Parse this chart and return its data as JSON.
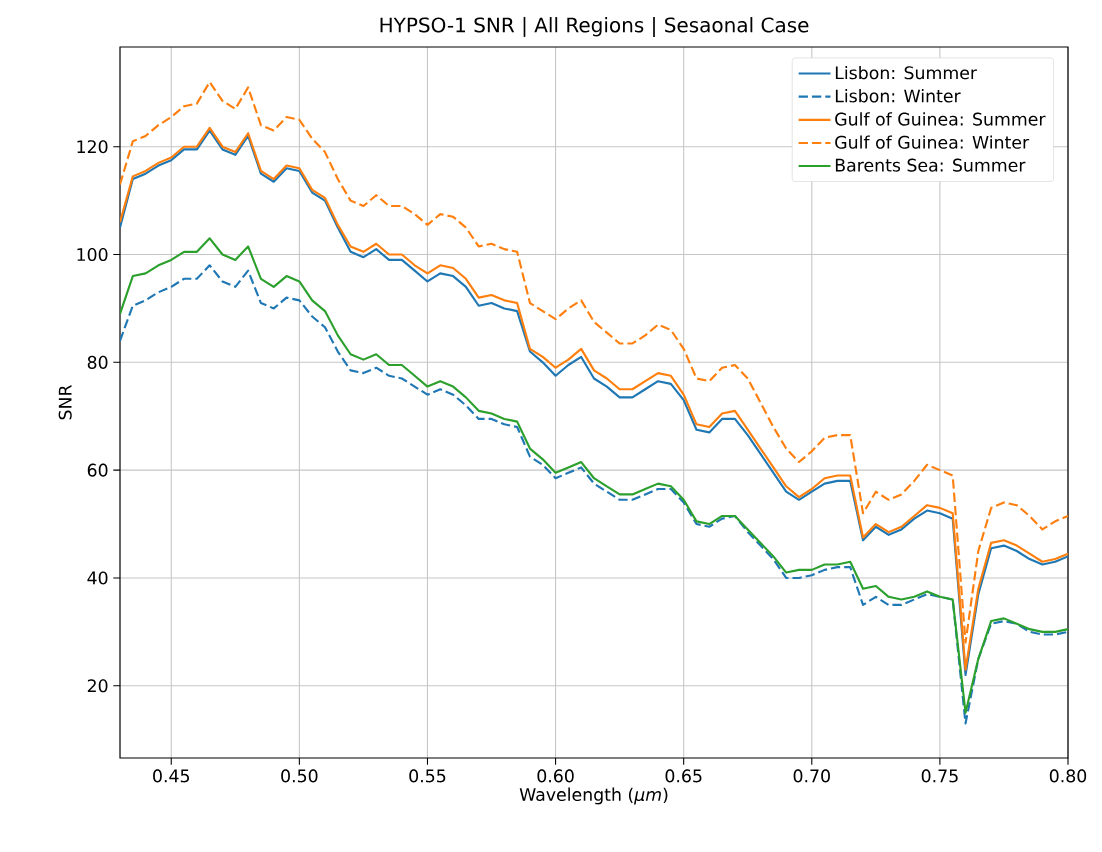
{
  "chart_data": {
    "type": "line",
    "title": "HYPSO-1 SNR | All Regions | Sesaonal Case",
    "xlabel": "Wavelength (*μm*)",
    "ylabel": "SNR",
    "x": [
      0.43,
      0.435,
      0.44,
      0.445,
      0.45,
      0.455,
      0.46,
      0.465,
      0.47,
      0.475,
      0.48,
      0.485,
      0.49,
      0.495,
      0.5,
      0.505,
      0.51,
      0.515,
      0.52,
      0.525,
      0.53,
      0.535,
      0.54,
      0.545,
      0.55,
      0.555,
      0.56,
      0.565,
      0.57,
      0.575,
      0.58,
      0.585,
      0.59,
      0.595,
      0.6,
      0.605,
      0.61,
      0.615,
      0.62,
      0.625,
      0.63,
      0.635,
      0.64,
      0.645,
      0.65,
      0.655,
      0.66,
      0.665,
      0.67,
      0.675,
      0.68,
      0.685,
      0.69,
      0.695,
      0.7,
      0.705,
      0.71,
      0.715,
      0.72,
      0.725,
      0.73,
      0.735,
      0.74,
      0.745,
      0.75,
      0.755,
      0.76,
      0.765,
      0.77,
      0.775,
      0.78,
      0.785,
      0.79,
      0.795,
      0.8
    ],
    "series": [
      {
        "name": "Lisbon: Summer",
        "color": "#1f77b4",
        "line_style": "solid",
        "values": [
          105,
          114,
          115,
          116.5,
          117.5,
          119.5,
          119.5,
          123,
          119.5,
          118.5,
          122,
          115,
          113.5,
          116,
          115.5,
          111.5,
          110,
          105,
          100.5,
          99.5,
          101,
          99,
          99,
          97,
          95,
          96.5,
          96,
          94,
          90.5,
          91,
          90,
          89.5,
          82,
          80,
          77.5,
          79.5,
          81,
          77,
          75.5,
          73.5,
          73.5,
          75,
          76.5,
          76,
          73,
          67.5,
          67,
          69.5,
          69.5,
          66.5,
          63,
          59.5,
          56,
          54.5,
          56,
          57.5,
          58,
          58,
          47,
          49.5,
          48,
          49,
          51,
          52.5,
          52,
          51,
          22,
          37,
          45.5,
          46,
          45,
          43.5,
          42.5,
          43,
          44
        ]
      },
      {
        "name": "Lisbon: Winter",
        "color": "#1f77b4",
        "line_style": "dashed",
        "values": [
          84,
          90.5,
          91.5,
          93,
          94,
          95.5,
          95.5,
          98,
          95,
          94,
          97,
          91,
          90,
          92,
          91.5,
          88.5,
          86.5,
          82,
          78.5,
          78,
          79,
          77.5,
          77,
          75.5,
          74,
          75,
          74,
          72,
          69.5,
          69.5,
          68.5,
          68,
          62.5,
          61,
          58.5,
          59.5,
          60.5,
          57.5,
          56,
          54.5,
          54.5,
          55.5,
          56.5,
          56.5,
          54,
          50,
          49.5,
          51,
          51.5,
          48.5,
          46,
          43.5,
          40,
          40,
          40.5,
          41.5,
          42,
          42,
          35,
          36.5,
          35,
          35,
          36,
          37,
          36.5,
          36,
          13,
          25,
          31.5,
          32,
          31.5,
          30,
          29.5,
          29.5,
          30
        ]
      },
      {
        "name": "Gulf of Guinea: Summer",
        "color": "#ff7f0e",
        "line_style": "solid",
        "values": [
          106,
          114.5,
          115.5,
          117,
          118,
          120,
          120,
          123.5,
          120,
          119,
          122.5,
          115.5,
          114,
          116.5,
          116,
          112,
          110.5,
          105.5,
          101.5,
          100.5,
          102,
          100,
          100,
          98,
          96.5,
          98,
          97.5,
          95.5,
          92,
          92.5,
          91.5,
          91,
          82.5,
          81,
          79,
          80.5,
          82.5,
          78.5,
          77,
          75,
          75,
          76.5,
          78,
          77.5,
          74,
          68.5,
          68,
          70.5,
          71,
          67.5,
          64,
          60.5,
          57,
          55,
          56.5,
          58.5,
          59,
          59,
          47.5,
          50,
          48.5,
          49.5,
          51.5,
          53.5,
          53,
          52,
          23,
          38,
          46.5,
          47,
          46,
          44.5,
          43,
          43.5,
          44.5
        ]
      },
      {
        "name": "Gulf of Guinea: Winter",
        "color": "#ff7f0e",
        "line_style": "dashed",
        "values": [
          113,
          121,
          122,
          124,
          125.5,
          127.5,
          128,
          132,
          128.5,
          127,
          131,
          124,
          123,
          125.5,
          125,
          121.5,
          119,
          114,
          110,
          109,
          111,
          109,
          109,
          107.5,
          105.5,
          107.5,
          107,
          105,
          101.5,
          102,
          101,
          100.5,
          91,
          89.5,
          88,
          90,
          91.5,
          87.5,
          85.5,
          83.5,
          83.5,
          85,
          87,
          86,
          82.5,
          77,
          76.5,
          79,
          79.5,
          77,
          72.5,
          68,
          64,
          61.5,
          63.5,
          66,
          66.5,
          66.5,
          52,
          56,
          54.5,
          55.5,
          58,
          61,
          60,
          59,
          28,
          45,
          53,
          54,
          53.5,
          51.5,
          49,
          50.5,
          51.5
        ]
      },
      {
        "name": "Barents Sea: Summer",
        "color": "#2ca02c",
        "line_style": "solid",
        "values": [
          89,
          96,
          96.5,
          98,
          99,
          100.5,
          100.5,
          103,
          100,
          99,
          101.5,
          95.5,
          94,
          96,
          95,
          91.5,
          89.5,
          85,
          81.5,
          80.5,
          81.5,
          79.5,
          79.5,
          77.5,
          75.5,
          76.5,
          75.5,
          73.5,
          71,
          70.5,
          69.5,
          69,
          64,
          62,
          59.5,
          60.5,
          61.5,
          58.5,
          57,
          55.5,
          55.5,
          56.5,
          57.5,
          57,
          54.5,
          50.5,
          50,
          51.5,
          51.5,
          49,
          46.5,
          44,
          41,
          41.5,
          41.5,
          42.5,
          42.5,
          43,
          38,
          38.5,
          36.5,
          36,
          36.5,
          37.5,
          36.5,
          36,
          15,
          25,
          32,
          32.5,
          31.5,
          30.5,
          30,
          30,
          30.5
        ]
      }
    ],
    "xlim": [
      0.43,
      0.8
    ],
    "ylim": [
      6.6,
      138.5
    ],
    "xticks": [
      {
        "value": 0.45,
        "label": "0.45"
      },
      {
        "value": 0.5,
        "label": "0.50"
      },
      {
        "value": 0.55,
        "label": "0.55"
      },
      {
        "value": 0.6,
        "label": "0.60"
      },
      {
        "value": 0.65,
        "label": "0.65"
      },
      {
        "value": 0.7,
        "label": "0.70"
      },
      {
        "value": 0.75,
        "label": "0.75"
      },
      {
        "value": 0.8,
        "label": "0.80"
      }
    ],
    "yticks": [
      20,
      40,
      60,
      80,
      100,
      120
    ],
    "grid": true,
    "legend": "top right"
  }
}
